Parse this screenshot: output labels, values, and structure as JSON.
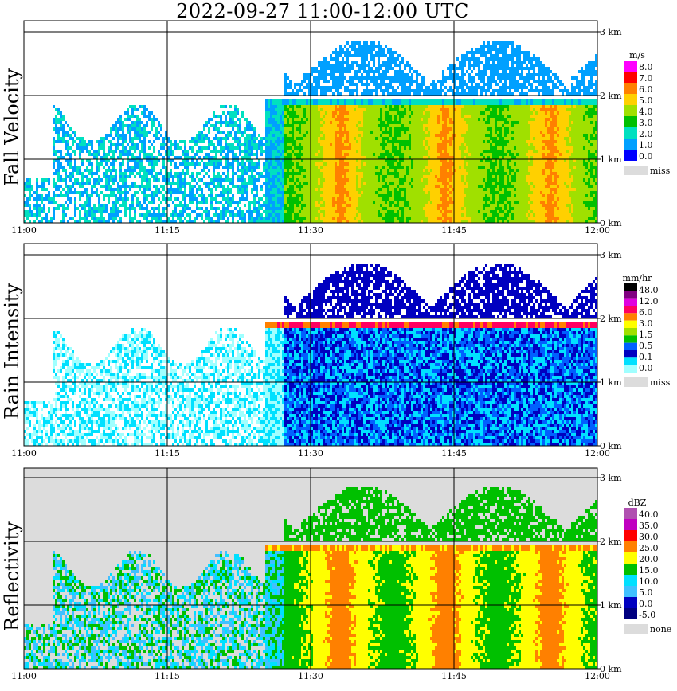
{
  "title": "2022-09-27   11:00-12:00 UTC",
  "x_ticks": [
    "11:00",
    "11:15",
    "11:30",
    "11:45",
    "12:00"
  ],
  "height_ticks": [
    "0 km",
    "1 km",
    "2 km",
    "3 km"
  ],
  "chart_data": [
    {
      "type": "heatmap",
      "title": "Fall Velocity",
      "ylabel": "Fall Velocity",
      "x_range": [
        "11:00",
        "12:00"
      ],
      "y_range_km": [
        0,
        3
      ],
      "legend": {
        "unit": "m/s",
        "levels": [
          "8.0",
          "7.0",
          "6.0",
          "5.0",
          "4.0",
          "3.0",
          "2.0",
          "1.0",
          "0.0"
        ],
        "colors": [
          "#ff00ff",
          "#ff0000",
          "#ff8000",
          "#ffd000",
          "#a0e000",
          "#00c000",
          "#00e0c0",
          "#00a0ff",
          "#0000ff"
        ],
        "missing_label": "miss",
        "missing_color": "#dcdcdc"
      }
    },
    {
      "type": "heatmap",
      "title": "Rain Intensity",
      "ylabel": "Rain Intensity",
      "x_range": [
        "11:00",
        "12:00"
      ],
      "y_range_km": [
        0,
        3
      ],
      "legend": {
        "unit": "mm/hr",
        "levels": [
          "48.0",
          "12.0",
          "6.0",
          "3.0",
          "1.5",
          "0.5",
          "0.1",
          "0.0"
        ],
        "colors": [
          "#000000",
          "#800080",
          "#e000e0",
          "#ff0060",
          "#ff8000",
          "#ffff00",
          "#a0e000",
          "#00c000",
          "#0060ff",
          "#0000c0",
          "#00e0ff",
          "#a0ffff"
        ],
        "missing_label": "miss",
        "missing_color": "#dcdcdc"
      }
    },
    {
      "type": "heatmap",
      "title": "Reflectivity",
      "ylabel": "Reflectivity",
      "x_range": [
        "11:00",
        "12:00"
      ],
      "y_range_km": [
        0,
        3
      ],
      "legend": {
        "unit": "dBZ",
        "levels": [
          "40.0",
          "35.0",
          "30.0",
          "25.0",
          "20.0",
          "15.0",
          "10.0",
          "5.0",
          "0.0",
          "-5.0"
        ],
        "colors": [
          "#b050b0",
          "#c000c0",
          "#ff0000",
          "#ff8000",
          "#ffff00",
          "#00c000",
          "#00e0ff",
          "#40c0ff",
          "#0000c0",
          "#000080"
        ],
        "missing_label": "none",
        "missing_color": "#dcdcdc"
      }
    }
  ]
}
